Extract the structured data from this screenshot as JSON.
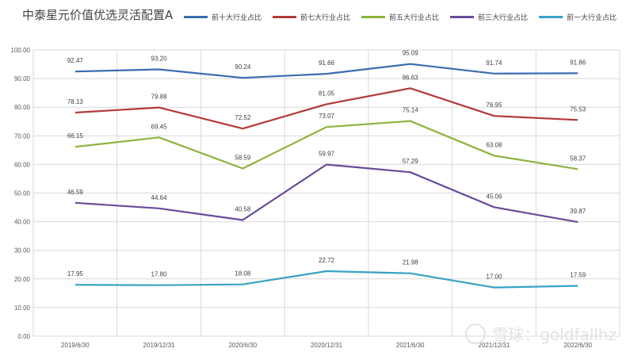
{
  "chart_data": {
    "type": "line",
    "title": "中泰星元价值优选灵活配置A",
    "xlabel": "",
    "ylabel": "",
    "ylim": [
      0,
      100
    ],
    "yticks": [
      "0.00",
      "10.00",
      "20.00",
      "30.00",
      "40.00",
      "50.00",
      "60.00",
      "70.00",
      "80.00",
      "90.00",
      "100.00"
    ],
    "categories": [
      "2019/6/30",
      "2019/12/31",
      "2020/6/30",
      "2020/12/31",
      "2021/6/30",
      "2021/12/31",
      "2022/6/30"
    ],
    "grid": true,
    "legend_position": "top",
    "series": [
      {
        "name": "前十大行业占比",
        "color": "#3a6db3",
        "values": [
          92.47,
          93.2,
          90.24,
          91.66,
          95.09,
          91.74,
          91.86
        ],
        "labels": [
          "92.47",
          "93.20",
          "90.24",
          "91.66",
          "95.09",
          "91.74",
          "91.86"
        ]
      },
      {
        "name": "前七大行业占比",
        "color": "#b23a36",
        "values": [
          78.13,
          79.88,
          72.52,
          81.05,
          86.63,
          76.95,
          75.53
        ],
        "labels": [
          "78.13",
          "79.88",
          "72.52",
          "81.05",
          "86.63",
          "76.95",
          "75.53"
        ]
      },
      {
        "name": "前五大行业占比",
        "color": "#8db33f",
        "values": [
          66.15,
          69.45,
          58.59,
          73.07,
          75.14,
          63.08,
          58.37
        ],
        "labels": [
          "66.15",
          "69.45",
          "58.59",
          "73.07",
          "75.14",
          "63.08",
          "58.37"
        ]
      },
      {
        "name": "前三大行业占比",
        "color": "#6a4b9a",
        "values": [
          46.59,
          44.64,
          40.58,
          59.97,
          57.29,
          45.06,
          39.87
        ],
        "labels": [
          "46.59",
          "44.64",
          "40.58",
          "59.97",
          "57.29",
          "45.06",
          "39.87"
        ]
      },
      {
        "name": "前一大行业占比",
        "color": "#37a2c4",
        "values": [
          17.95,
          17.8,
          18.08,
          22.72,
          21.98,
          17.0,
          17.59
        ],
        "labels": [
          "17.95",
          "17.80",
          "18.08",
          "22.72",
          "21.98",
          "17.00",
          "17.59"
        ]
      }
    ]
  },
  "watermark": {
    "text": "雪球：goldfallhz"
  }
}
